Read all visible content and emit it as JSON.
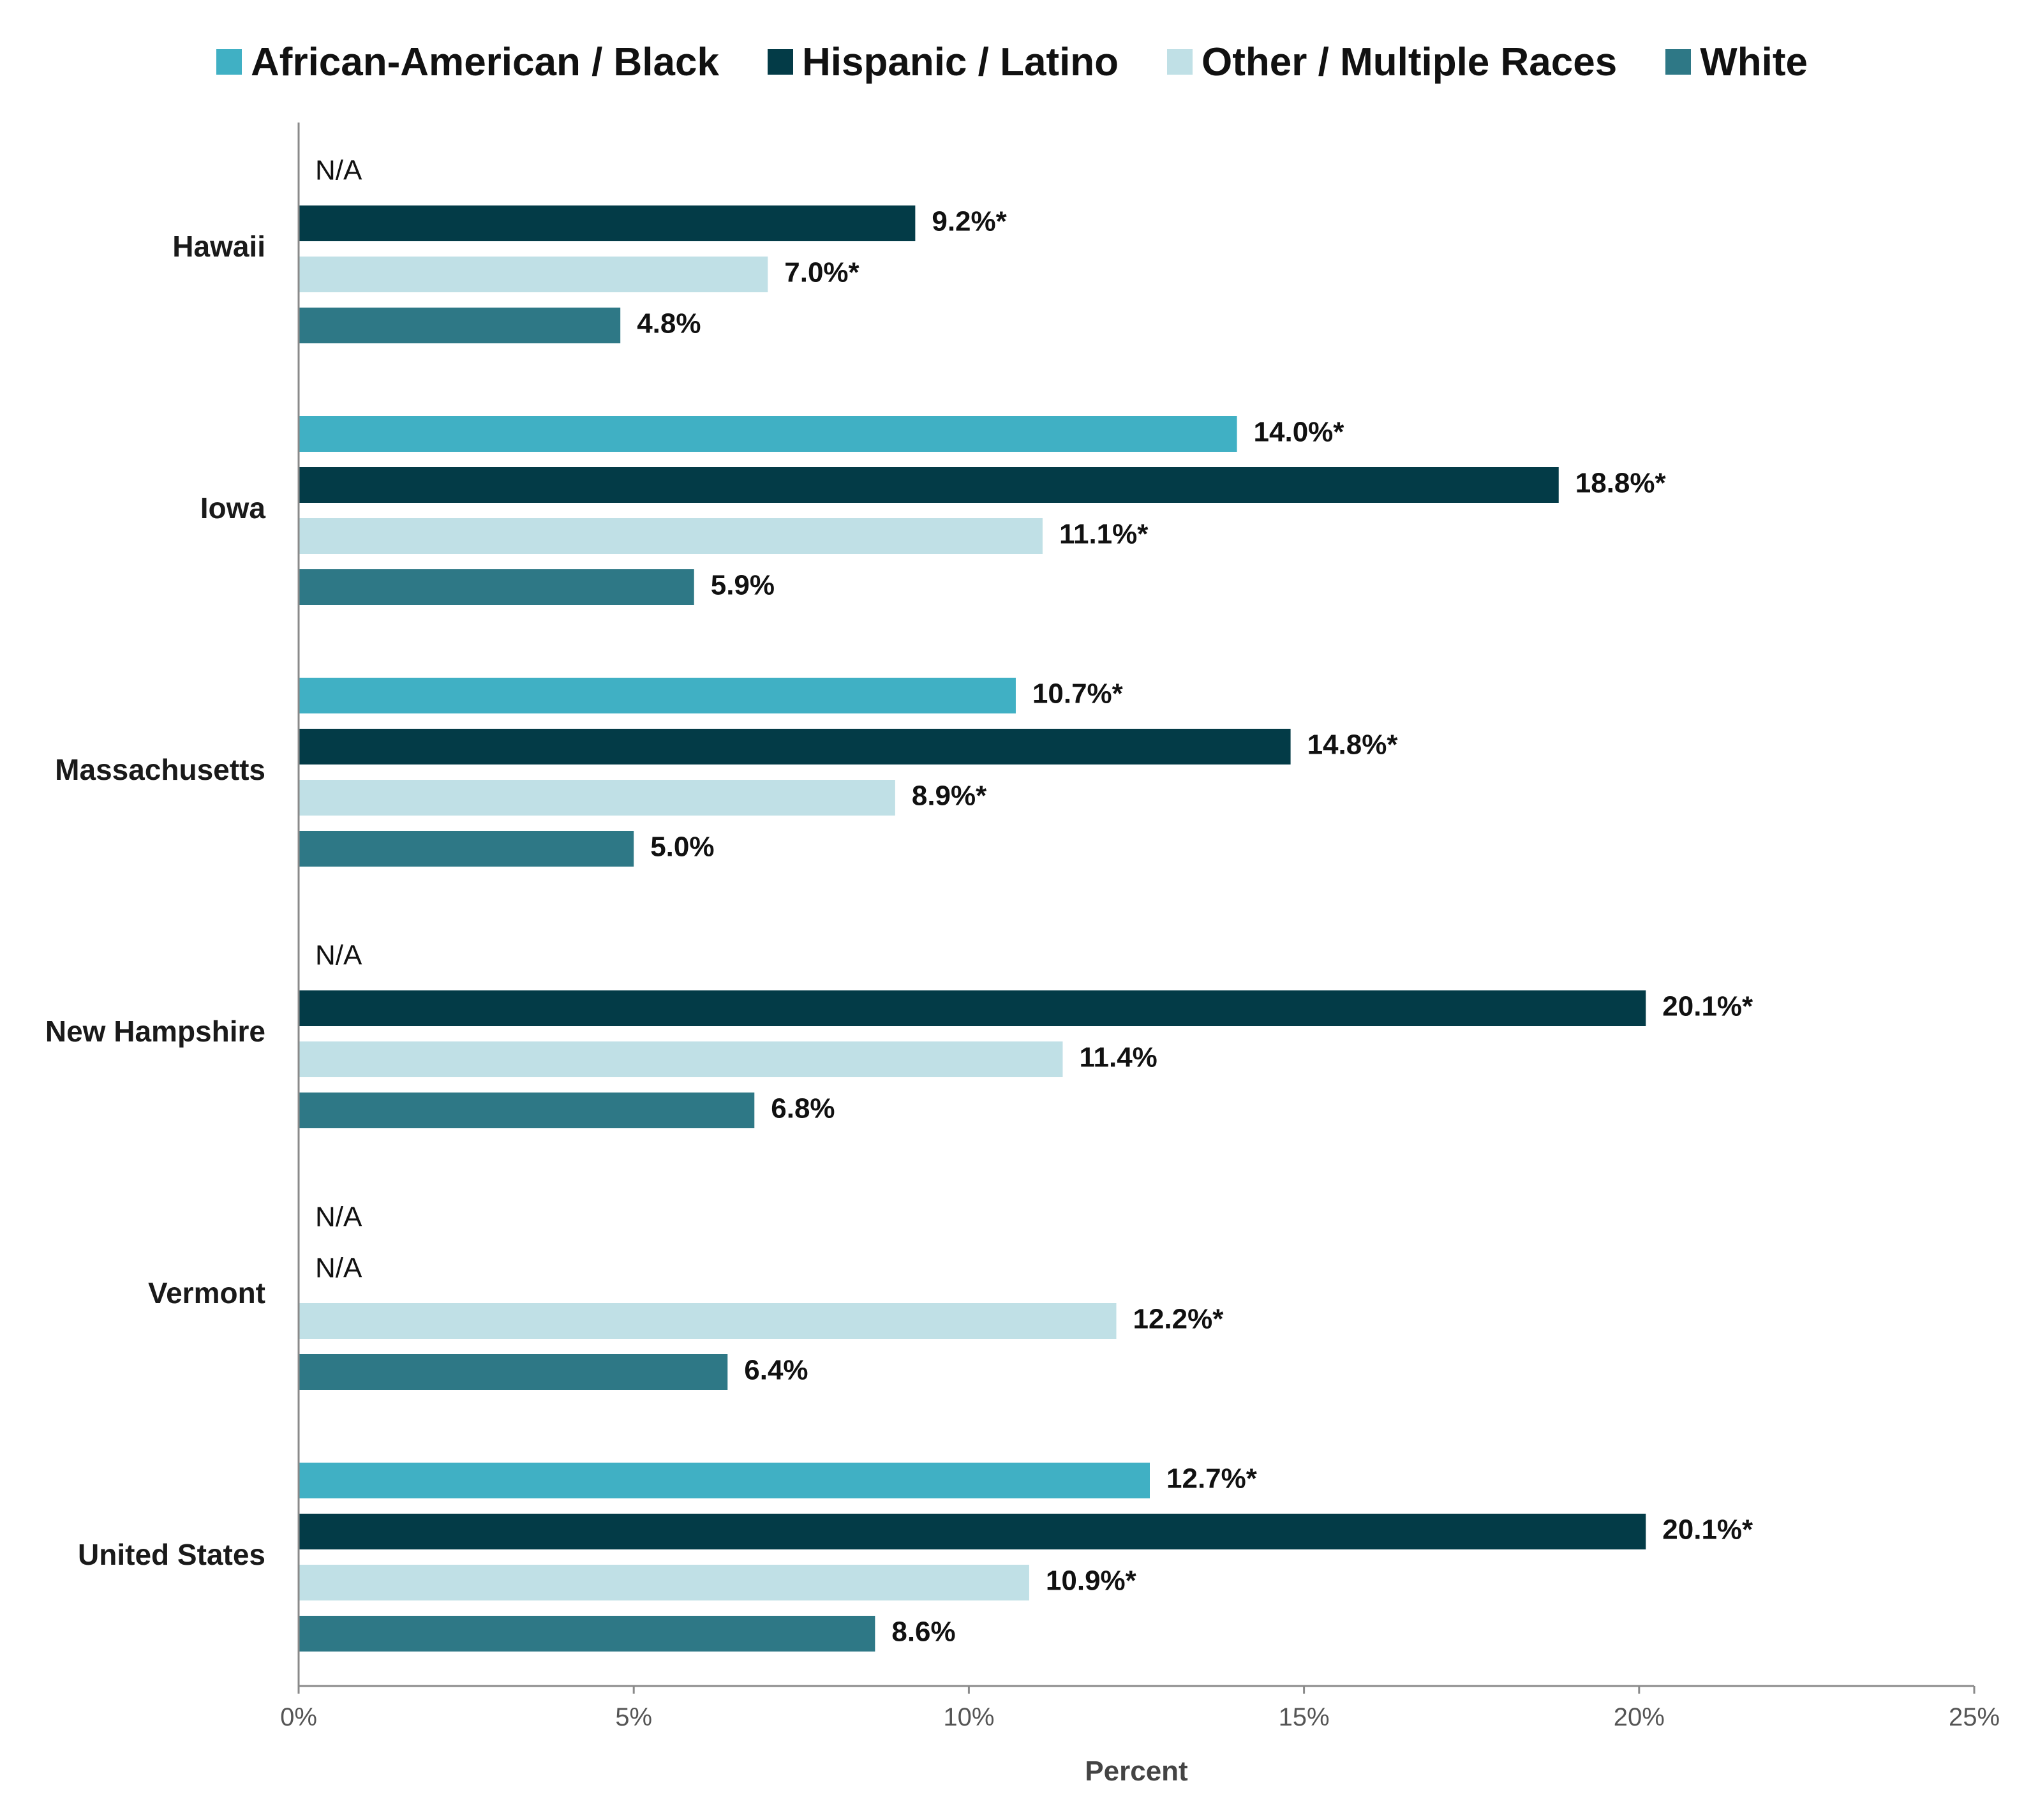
{
  "chart_data": {
    "type": "bar",
    "orientation": "horizontal",
    "xlabel": "Percent",
    "xlim": [
      0,
      25
    ],
    "x_ticks": [
      0,
      5,
      10,
      15,
      20,
      25
    ],
    "x_tick_labels": [
      "0%",
      "5%",
      "10%",
      "15%",
      "20%",
      "25%"
    ],
    "legend_position": "top",
    "categories": [
      "Hawaii",
      "Iowa",
      "Massachusetts",
      "New Hampshire",
      "Vermont",
      "United States"
    ],
    "na_label": "N/A",
    "series": [
      {
        "name": "African-American / Black",
        "color": "#40b0c4",
        "values": [
          null,
          14.0,
          10.7,
          null,
          null,
          12.7
        ],
        "labels": [
          "N/A",
          "14.0%*",
          "10.7%*",
          "N/A",
          "N/A",
          "12.7%*"
        ]
      },
      {
        "name": "Hispanic / Latino",
        "color": "#033b47",
        "values": [
          9.2,
          18.8,
          14.8,
          20.1,
          null,
          20.1
        ],
        "labels": [
          "9.2%*",
          "18.8%*",
          "14.8%*",
          "20.1%*",
          "N/A",
          "20.1%*"
        ]
      },
      {
        "name": "Other / Multiple Races",
        "color": "#c0e0e6",
        "values": [
          7.0,
          11.1,
          8.9,
          11.4,
          12.2,
          10.9
        ],
        "labels": [
          "7.0%*",
          "11.1%*",
          "8.9%*",
          "11.4%",
          "12.2%*",
          "10.9%*"
        ]
      },
      {
        "name": "White",
        "color": "#2e7886",
        "values": [
          4.8,
          5.9,
          5.0,
          6.8,
          6.4,
          8.6
        ],
        "labels": [
          "4.8%",
          "5.9%",
          "5.0%",
          "6.8%",
          "6.4%",
          "8.6%"
        ]
      }
    ]
  }
}
